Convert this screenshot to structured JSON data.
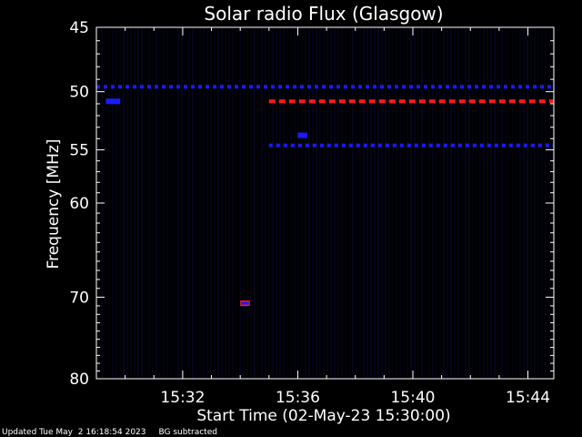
{
  "chart_data": {
    "type": "heatmap",
    "title": "Solar radio Flux (Glasgow)",
    "xlabel": "Start Time (02-May-23 15:30:00)",
    "ylabel": "Frequency [MHz]",
    "x_range": [
      "15:29:00",
      "15:44:54"
    ],
    "ylim": [
      45,
      80
    ],
    "y_scale": "log",
    "y_ticks": [
      45,
      50,
      55,
      60,
      70,
      80
    ],
    "y_tick_labels": [
      "45",
      "50",
      "55",
      "60",
      "70",
      "80"
    ],
    "x_ticks": [
      "15:32",
      "15:36",
      "15:40",
      "15:44"
    ],
    "colors": {
      "background": "#000000",
      "faint": "#0a0a3c",
      "medium": "#1a1aff",
      "strong": "#ff1a1a",
      "axis": "#ffffff"
    },
    "features": [
      {
        "name": "",
        "freq_mhz": 49.6,
        "start": "15:29:00",
        "end": "15:44:54",
        "intensity": "medium",
        "dashed": true
      },
      {
        "name": "",
        "freq_mhz": 50.8,
        "start": "15:29:20",
        "end": "15:29:50",
        "intensity": "medium",
        "dashed": false
      },
      {
        "name": "",
        "freq_mhz": 50.8,
        "start": "15:35:00",
        "end": "15:44:54",
        "intensity": "strong",
        "dashed": true
      },
      {
        "name": "",
        "freq_mhz": 54.6,
        "start": "15:35:00",
        "end": "15:44:54",
        "intensity": "medium",
        "dashed": true
      },
      {
        "name": "",
        "freq_mhz": 53.7,
        "start": "15:36:00",
        "end": "15:36:20",
        "intensity": "medium",
        "dashed": false
      },
      {
        "name": "",
        "freq_mhz": 70.7,
        "start": "15:34:00",
        "end": "15:34:20",
        "intensity": "strong",
        "dashed": false
      }
    ]
  },
  "footer": {
    "updated": "Updated Tue May  2 16:18:54 2023",
    "note": "BG subtracted"
  }
}
